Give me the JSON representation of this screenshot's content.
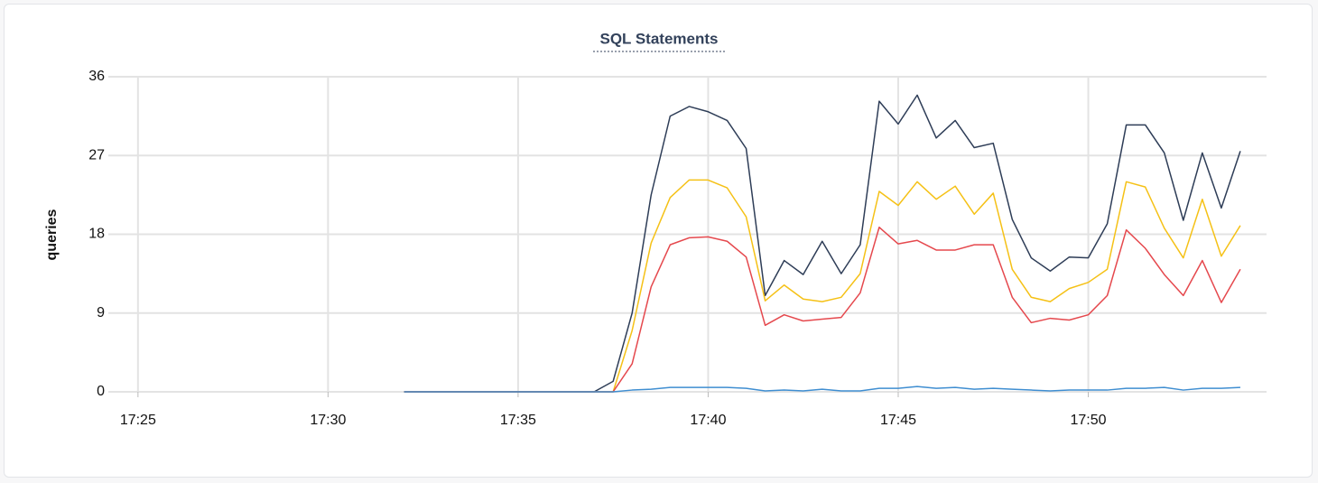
{
  "chart_data": {
    "type": "line",
    "title": "SQL Statements",
    "y_label": "queries",
    "x": [
      32,
      32.5,
      33,
      33.5,
      34,
      34.5,
      35,
      35.5,
      36,
      36.5,
      37,
      37.5,
      38,
      38.5,
      39,
      39.5,
      40,
      40.5,
      41,
      41.5,
      42,
      42.5,
      43,
      43.5,
      44,
      44.5,
      45,
      45.5,
      46,
      46.5,
      47,
      47.5,
      48,
      48.5,
      49,
      49.5,
      50,
      50.5,
      51,
      51.5,
      52,
      52.5,
      53,
      53.5,
      54
    ],
    "xlim": [
      24.22,
      54.69
    ],
    "xticks": [
      {
        "value": 25,
        "label": "17:25"
      },
      {
        "value": 30,
        "label": "17:30"
      },
      {
        "value": 35,
        "label": "17:35"
      },
      {
        "value": 40,
        "label": "17:40"
      },
      {
        "value": 45,
        "label": "17:45"
      },
      {
        "value": 50,
        "label": "17:50"
      }
    ],
    "ylim": [
      0,
      36
    ],
    "yticks": [
      0,
      9,
      18,
      27,
      36
    ],
    "grid": true,
    "series": [
      {
        "color": "#2e3d57",
        "values": [
          0,
          0,
          0,
          0,
          0,
          0,
          0,
          0,
          0,
          0,
          0,
          1.2,
          9,
          22.5,
          31.5,
          32.6,
          32,
          31,
          27.8,
          11,
          15,
          13.4,
          17.2,
          13.5,
          16.8,
          33.2,
          30.6,
          33.9,
          29,
          31,
          27.9,
          28.4,
          19.7,
          15.3,
          13.8,
          15.4,
          15.3,
          19.2,
          30.5,
          30.5,
          27.3,
          19.6,
          27.3,
          21,
          27.5
        ]
      },
      {
        "color": "#f5c116",
        "values": [
          0,
          0,
          0,
          0,
          0,
          0,
          0,
          0,
          0,
          0,
          0,
          0,
          7,
          17,
          22.2,
          24.2,
          24.2,
          23.3,
          20,
          10.4,
          12.2,
          10.6,
          10.3,
          10.8,
          13.5,
          22.9,
          21.3,
          24,
          22,
          23.5,
          20.3,
          22.7,
          14,
          10.8,
          10.3,
          11.8,
          12.5,
          14,
          24,
          23.4,
          18.7,
          15.3,
          22,
          15.5,
          19
        ]
      },
      {
        "color": "#e5484d",
        "values": [
          0,
          0,
          0,
          0,
          0,
          0,
          0,
          0,
          0,
          0,
          0,
          0,
          3.2,
          12,
          16.8,
          17.6,
          17.7,
          17.2,
          15.4,
          7.6,
          8.8,
          8.1,
          8.3,
          8.5,
          11.3,
          18.8,
          16.9,
          17.3,
          16.2,
          16.2,
          16.8,
          16.8,
          10.8,
          7.9,
          8.4,
          8.2,
          8.8,
          11,
          18.5,
          16.4,
          13.4,
          11,
          15,
          10.2,
          14
        ]
      },
      {
        "color": "#3f8ed1",
        "values": [
          0,
          0,
          0,
          0,
          0,
          0,
          0,
          0,
          0,
          0,
          0,
          0,
          0.2,
          0.3,
          0.5,
          0.5,
          0.5,
          0.5,
          0.4,
          0.1,
          0.2,
          0.1,
          0.3,
          0.1,
          0.1,
          0.4,
          0.4,
          0.6,
          0.4,
          0.5,
          0.3,
          0.4,
          0.3,
          0.2,
          0.1,
          0.2,
          0.2,
          0.2,
          0.4,
          0.4,
          0.5,
          0.2,
          0.4,
          0.4,
          0.5
        ]
      }
    ]
  }
}
